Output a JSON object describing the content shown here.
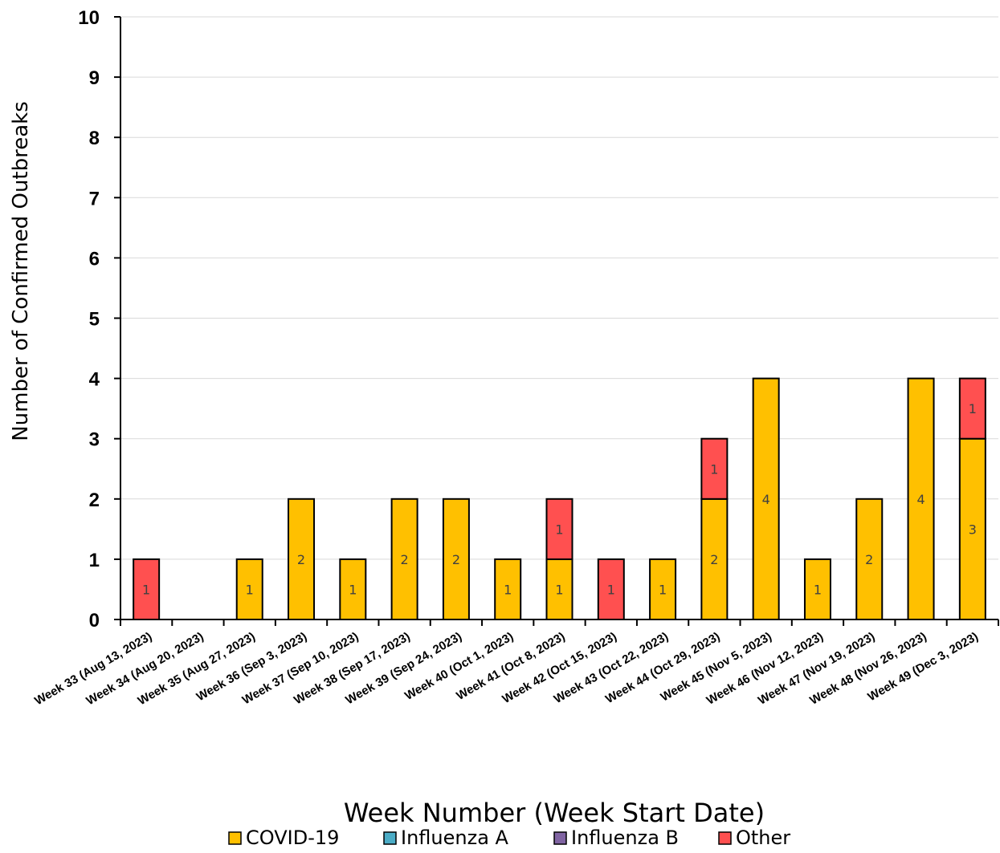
{
  "chart_data": {
    "type": "bar",
    "stacked": true,
    "xlabel": "Week Number (Week Start Date)",
    "ylabel": "Number of Confirmed Outbreaks",
    "ylim": [
      0,
      10
    ],
    "yticks": [
      "0",
      "1",
      "2",
      "3",
      "4",
      "5",
      "6",
      "7",
      "8",
      "9",
      "10"
    ],
    "grid": true,
    "legend_position": "bottom",
    "categories": [
      "Week 33 (Aug 13, 2023)",
      "Week 34 (Aug 20, 2023)",
      "Week 35 (Aug 27, 2023)",
      "Week 36 (Sep 3, 2023)",
      "Week 37 (Sep 10, 2023)",
      "Week 38 (Sep 17, 2023)",
      "Week 39 (Sep 24, 2023)",
      "Week 40 (Oct 1, 2023)",
      "Week 41 (Oct 8, 2023)",
      "Week 42 (Oct 15, 2023)",
      "Week 43 (Oct 22, 2023)",
      "Week 44 (Oct 29, 2023)",
      "Week 45 (Nov 5, 2023)",
      "Week 46 (Nov 12, 2023)",
      "Week 47 (Nov 19, 2023)",
      "Week 48 (Nov 26, 2023)",
      "Week 49 (Dec 3, 2023)"
    ],
    "series": [
      {
        "name": "COVID-19",
        "color": "#FFC000",
        "values": [
          0,
          0,
          1,
          2,
          1,
          2,
          2,
          1,
          1,
          0,
          1,
          2,
          4,
          1,
          2,
          4,
          3
        ]
      },
      {
        "name": "Influenza A",
        "color": "#4BACC6",
        "values": [
          0,
          0,
          0,
          0,
          0,
          0,
          0,
          0,
          0,
          0,
          0,
          0,
          0,
          0,
          0,
          0,
          0
        ]
      },
      {
        "name": "Influenza B",
        "color": "#8064A2",
        "values": [
          0,
          0,
          0,
          0,
          0,
          0,
          0,
          0,
          0,
          0,
          0,
          0,
          0,
          0,
          0,
          0,
          0
        ]
      },
      {
        "name": "Other",
        "color": "#FF5050",
        "values": [
          1,
          0,
          0,
          0,
          0,
          0,
          0,
          0,
          1,
          1,
          0,
          1,
          0,
          0,
          0,
          0,
          1
        ]
      }
    ]
  }
}
